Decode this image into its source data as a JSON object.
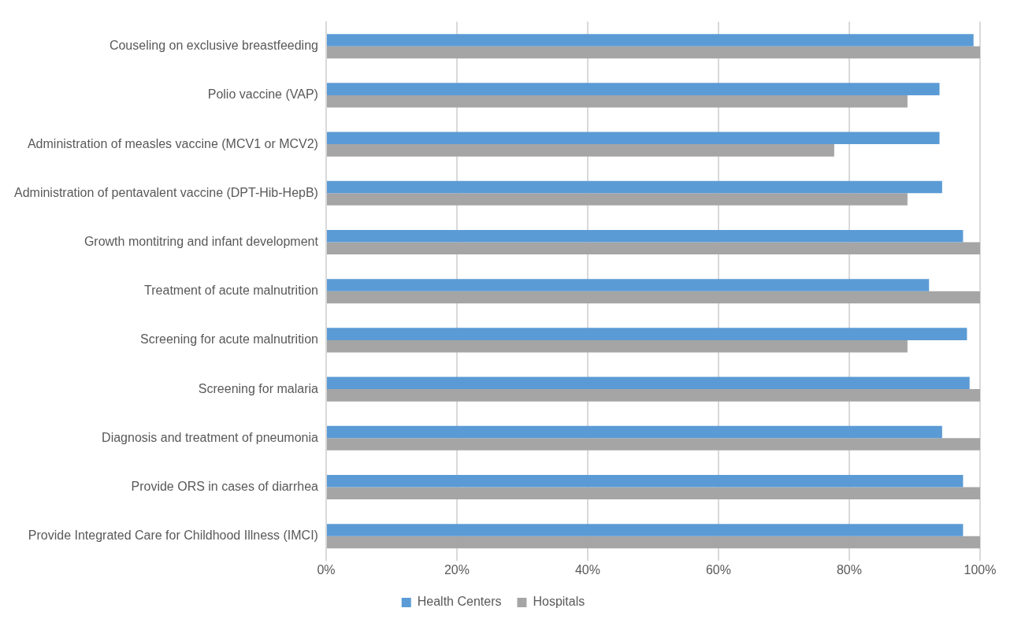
{
  "chart_data": {
    "type": "bar",
    "orientation": "horizontal",
    "categories": [
      "Couseling on exclusive breastfeeding",
      "Polio vaccine (VAP)",
      "Administration of measles vaccine (MCV1 or MCV2)",
      "Administration of pentavalent vaccine (DPT-Hib-HepB)",
      "Growth montitring and infant development",
      "Treatment of acute malnutrition",
      "Screening for acute malnutrition",
      "Screening for malaria",
      "Diagnosis and treatment of pneumonia",
      "Provide ORS in cases of diarrhea",
      "Provide Integrated Care for Childhood Illness (IMCI)"
    ],
    "series": [
      {
        "name": "Health Centers",
        "color": "#5b9bd5",
        "values": [
          99,
          93.8,
          93.8,
          94.2,
          97.4,
          92.2,
          98,
          98.4,
          94.2,
          97.4,
          97.4
        ]
      },
      {
        "name": "Hospitals",
        "color": "#a5a5a5",
        "values": [
          100,
          88.9,
          77.7,
          88.9,
          100,
          100,
          88.9,
          100,
          100,
          100,
          100
        ]
      }
    ],
    "xlim": [
      0,
      100
    ],
    "xticks": [
      {
        "value": 0,
        "label": "0%"
      },
      {
        "value": 20,
        "label": "20%"
      },
      {
        "value": 40,
        "label": "40%"
      },
      {
        "value": 60,
        "label": "60%"
      },
      {
        "value": 80,
        "label": "80%"
      },
      {
        "value": 100,
        "label": "100%"
      }
    ],
    "grid": "x",
    "legend": "bottom"
  }
}
